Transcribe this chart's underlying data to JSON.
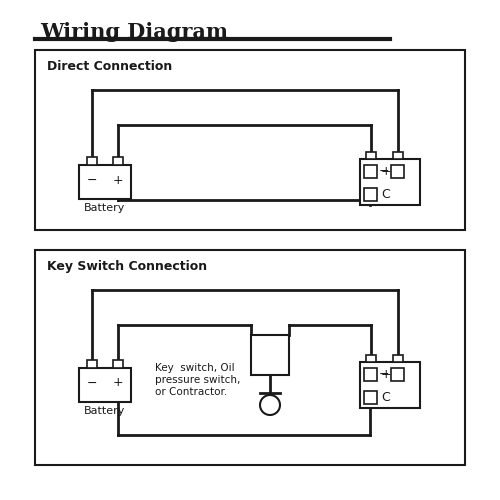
{
  "title": "Wiring Diagram",
  "title_fontsize": 15,
  "bg_color": "#ffffff",
  "line_color": "#1a1a1a",
  "box1_label": "Direct Connection",
  "box2_label": "Key Switch Connection",
  "battery_label": "Battery",
  "key_switch_label": "Key  switch, Oil\npressure switch,\nor Contractor.",
  "figsize": [
    5.0,
    5.0
  ],
  "dpi": 100
}
